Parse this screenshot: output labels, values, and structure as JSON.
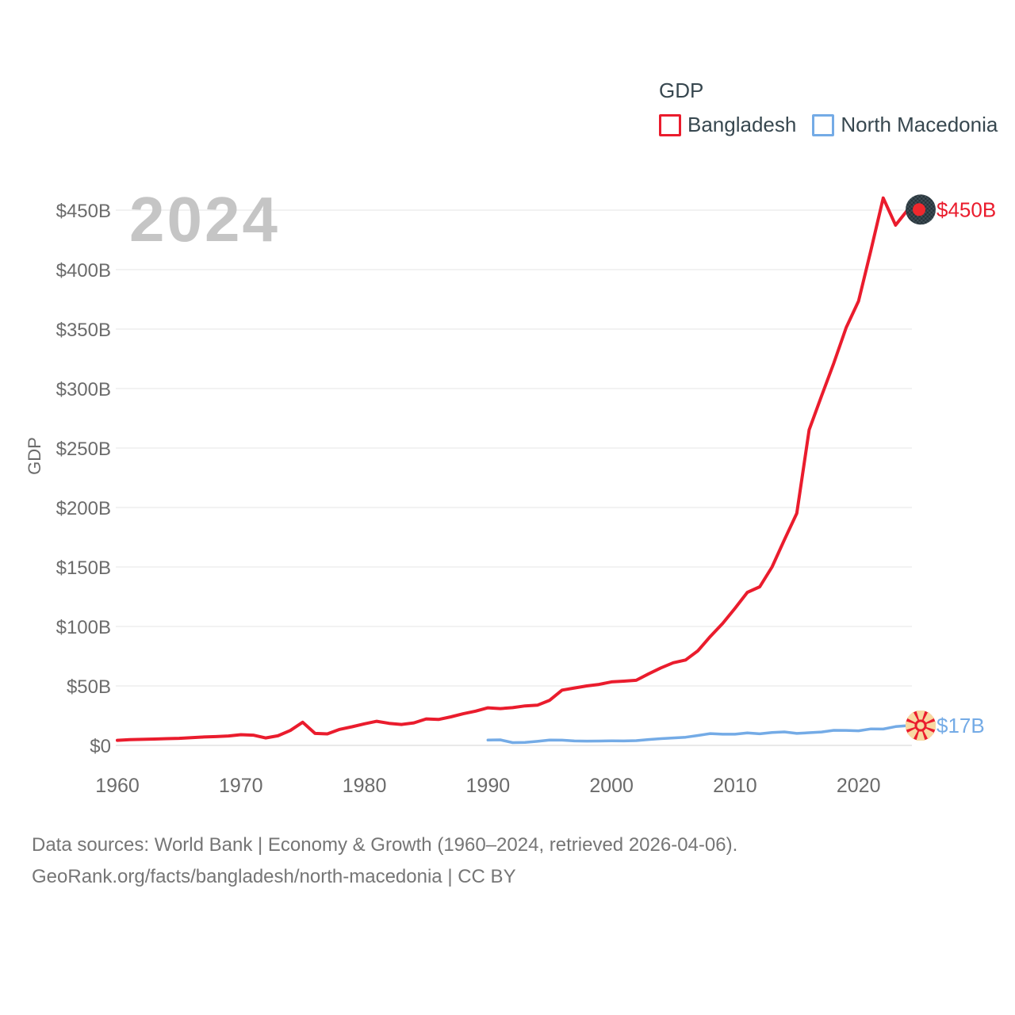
{
  "watermark": "2024",
  "chart_data": {
    "type": "line",
    "title": "GDP",
    "xlabel": "",
    "ylabel": "GDP",
    "xlim": [
      1960,
      2024
    ],
    "ylim": [
      0,
      500
    ],
    "grid": true,
    "legend_position": "top-right",
    "x_ticks": [
      "1960",
      "1970",
      "1980",
      "1990",
      "2000",
      "2010",
      "2020"
    ],
    "y_ticks": [
      {
        "value": 0,
        "label": "$0"
      },
      {
        "value": 50,
        "label": "$50B"
      },
      {
        "value": 100,
        "label": "$100B"
      },
      {
        "value": 150,
        "label": "$150B"
      },
      {
        "value": 200,
        "label": "$200B"
      },
      {
        "value": 250,
        "label": "$250B"
      },
      {
        "value": 300,
        "label": "$300B"
      },
      {
        "value": 350,
        "label": "$350B"
      },
      {
        "value": 400,
        "label": "$400B"
      },
      {
        "value": 450,
        "label": "$450B"
      }
    ],
    "unit": "billions of current US$",
    "series": [
      {
        "name": "Bangladesh",
        "color": "#ea1c2d",
        "flag_icon": "bangladesh-flag-icon",
        "end_label": "$450B",
        "start_year": 1960,
        "values": [
          4.27,
          4.81,
          5.08,
          5.32,
          5.7,
          5.91,
          6.44,
          7.1,
          7.39,
          7.93,
          8.99,
          8.6,
          6.29,
          8.09,
          12.51,
          19.45,
          10.06,
          9.66,
          13.5,
          15.67,
          18.14,
          20.25,
          18.53,
          17.62,
          18.94,
          22.28,
          21.77,
          23.97,
          26.58,
          28.78,
          31.6,
          30.96,
          31.71,
          33.17,
          33.77,
          37.94,
          46.44,
          48.24,
          49.98,
          51.27,
          53.37,
          53.99,
          54.72,
          60.16,
          65.11,
          69.44,
          71.82,
          79.61,
          91.63,
          102.48,
          115.28,
          128.64,
          133.36,
          149.99,
          172.89,
          195.08,
          265.24,
          293.75,
          321.38,
          351.24,
          373.56,
          416.26,
          460.2,
          437.42,
          450.47
        ]
      },
      {
        "name": "North Macedonia",
        "color": "#74abe6",
        "flag_icon": "north-macedonia-flag-icon",
        "end_label": "$17B",
        "start_year": 1990,
        "values": [
          4.47,
          4.68,
          2.33,
          2.55,
          3.38,
          4.45,
          4.42,
          3.73,
          3.57,
          3.67,
          3.77,
          3.71,
          4.03,
          4.95,
          5.68,
          6.26,
          6.86,
          8.34,
          9.92,
          9.4,
          9.41,
          10.49,
          9.75,
          10.82,
          11.36,
          10.06,
          10.68,
          11.29,
          12.67,
          12.6,
          12.27,
          13.84,
          13.71,
          15.77,
          16.7
        ]
      }
    ]
  },
  "footer": {
    "line1": "Data sources: World Bank | Economy & Growth (1960–2024, retrieved 2026-04-06).",
    "line2": "GeoRank.org/facts/bangladesh/north-macedonia | CC BY"
  }
}
